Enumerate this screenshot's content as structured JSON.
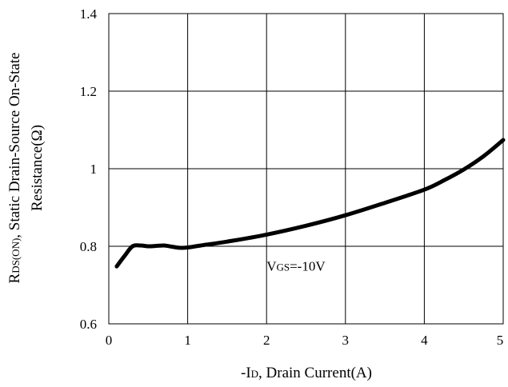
{
  "chart_data": {
    "type": "line",
    "xlabel": {
      "prefix": "-I",
      "sub": "D",
      "suffix": ", Drain Current(A)"
    },
    "ylabel": {
      "line1": {
        "prefix": "R",
        "sub": "DS(ON)",
        "suffix": ", Static Drain-Source On-State"
      },
      "line2": "Resistance(Ω)"
    },
    "xlim": [
      0,
      5
    ],
    "ylim": [
      0.6,
      1.4
    ],
    "xticks": [
      0,
      1,
      2,
      3,
      4,
      5
    ],
    "xtick_labels": [
      "0",
      "1",
      "2",
      "3",
      "4",
      "5"
    ],
    "yticks": [
      0.6,
      0.8,
      1.0,
      1.2,
      1.4
    ],
    "ytick_labels": [
      "0.6",
      "0.8",
      "1",
      "1.2",
      "1.4"
    ],
    "grid": true,
    "series": [
      {
        "color": "#000000",
        "x": [
          0.1,
          0.2,
          0.3,
          0.4,
          0.5,
          0.6,
          0.7,
          0.8,
          0.9,
          1.0,
          1.2,
          1.5,
          2.0,
          2.5,
          3.0,
          3.5,
          4.0,
          4.25,
          4.5,
          4.75,
          5.0
        ],
        "y": [
          0.748,
          0.775,
          0.8,
          0.802,
          0.8,
          0.801,
          0.802,
          0.799,
          0.796,
          0.797,
          0.803,
          0.812,
          0.83,
          0.853,
          0.88,
          0.912,
          0.946,
          0.97,
          0.998,
          1.032,
          1.074
        ]
      }
    ],
    "annotation": {
      "prefix": "V",
      "sub": "GS",
      "suffix": "=-10V",
      "x": 2.0,
      "y": 0.795
    }
  }
}
